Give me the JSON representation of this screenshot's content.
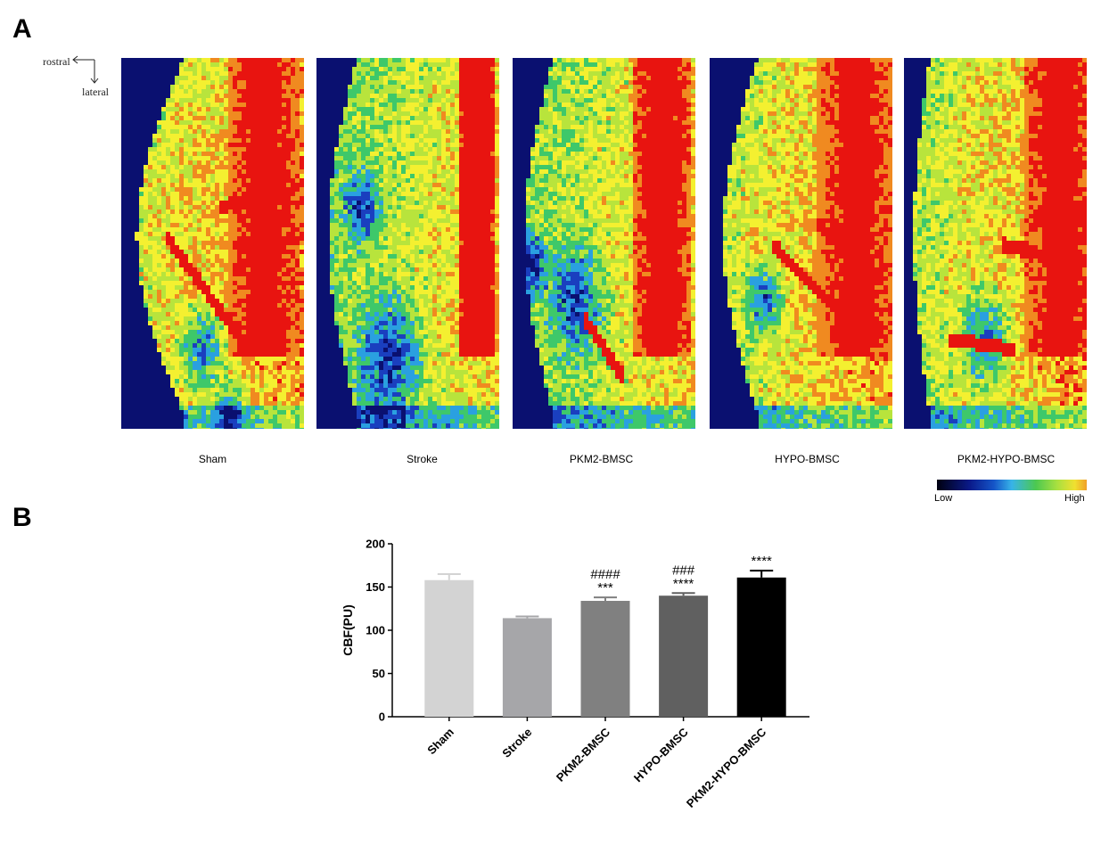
{
  "panel_a": {
    "letter": "A",
    "orientation": {
      "horizontal": "rostral",
      "vertical": "lateral"
    },
    "images": [
      {
        "label": "Sham",
        "pattern": "sham"
      },
      {
        "label": "Stroke",
        "pattern": "stroke"
      },
      {
        "label": "PKM2-BMSC",
        "pattern": "pkm2"
      },
      {
        "label": "HYPO-BMSC",
        "pattern": "hypo"
      },
      {
        "label": "PKM2-HYPO-BMSC",
        "pattern": "pkm2hypo"
      }
    ],
    "colorbar": {
      "low_label": "Low",
      "high_label": "High"
    },
    "colormap": [
      "#0a1070",
      "#1a3fbf",
      "#2aa0e0",
      "#3ec86a",
      "#b8e43c",
      "#f4f030",
      "#f08a20",
      "#e81410"
    ]
  },
  "panel_b": {
    "letter": "B"
  },
  "chart_data": {
    "type": "bar",
    "categories": [
      "Sham",
      "Stroke",
      "PKM2-BMSC",
      "HYPO-BMSC",
      "PKM2-HYPO-BMSC"
    ],
    "values": [
      158,
      114,
      134,
      140,
      161
    ],
    "errors": [
      7,
      2,
      4,
      3,
      8
    ],
    "annotations": [
      {
        "lines": []
      },
      {
        "lines": []
      },
      {
        "lines": [
          "####",
          "***"
        ]
      },
      {
        "lines": [
          "###",
          "****"
        ]
      },
      {
        "lines": [
          "****"
        ]
      }
    ],
    "bar_colors": [
      "#d3d3d3",
      "#a6a6a9",
      "#808080",
      "#606060",
      "#000000"
    ],
    "ylabel": "CBF(PU)",
    "ylim": [
      0,
      200
    ],
    "yticks": [
      0,
      50,
      100,
      150,
      200
    ],
    "grid": false
  }
}
